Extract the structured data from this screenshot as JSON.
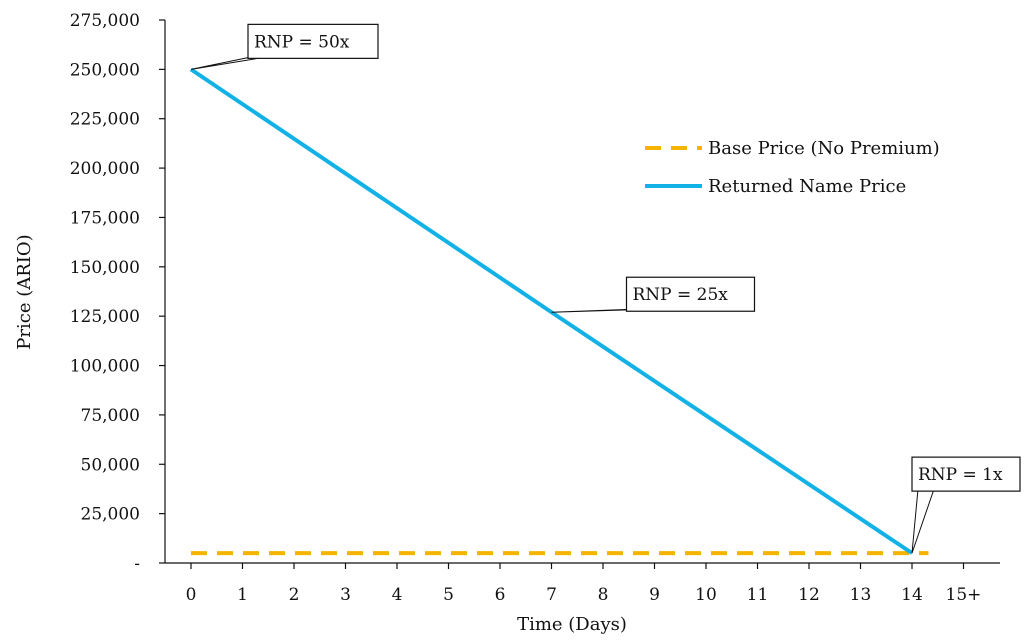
{
  "chart_data": {
    "type": "line",
    "xlabel": "Time (Days)",
    "ylabel": "Price (ARIO)",
    "x_tick_labels": [
      "0",
      "1",
      "2",
      "3",
      "4",
      "5",
      "6",
      "7",
      "8",
      "9",
      "10",
      "11",
      "12",
      "13",
      "14",
      "15+"
    ],
    "y_tick_labels": [
      "-",
      "25,000",
      "50,000",
      "75,000",
      "100,000",
      "125,000",
      "150,000",
      "175,000",
      "200,000",
      "225,000",
      "250,000",
      "275,000"
    ],
    "ylim": [
      0,
      275000
    ],
    "grid": false,
    "legend_position": "right",
    "series": [
      {
        "name": "Base Price (No Premium)",
        "style": "dashed",
        "color": "#F5B400",
        "x": [
          0,
          15
        ],
        "y": [
          5000,
          5000
        ]
      },
      {
        "name": "Returned Name Price",
        "style": "solid",
        "color": "#12B1E6",
        "x": [
          0,
          7,
          14
        ],
        "y": [
          250000,
          127000,
          5000
        ]
      }
    ],
    "annotations": [
      {
        "text": "RNP = 50x",
        "x": 0,
        "y": 250000
      },
      {
        "text": "RNP = 25x",
        "x": 7,
        "y": 127000
      },
      {
        "text": "RNP = 1x",
        "x": 14,
        "y": 5000
      }
    ]
  }
}
